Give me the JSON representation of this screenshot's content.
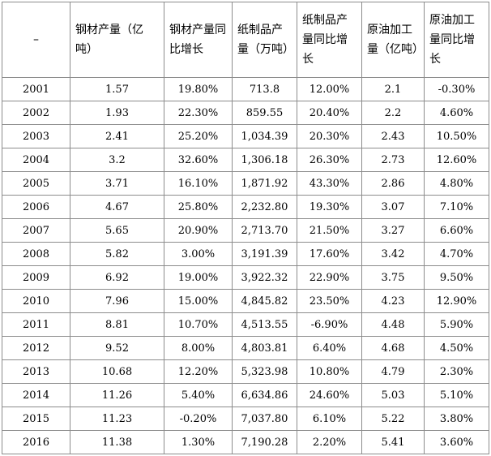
{
  "table": {
    "headers": [
      "–",
      "钢材产量（亿吨）",
      "钢材产量同比增长",
      "纸制品产量（万吨）",
      "纸制品产量同比增长",
      "原油加工量（亿吨）",
      "原油加工量同比增长"
    ],
    "rows": [
      [
        "2001",
        "1.57",
        "19.80%",
        "713.8",
        "12.00%",
        "2.1",
        "-0.30%"
      ],
      [
        "2002",
        "1.93",
        "22.30%",
        "859.55",
        "20.40%",
        "2.2",
        "4.60%"
      ],
      [
        "2003",
        "2.41",
        "25.20%",
        "1,034.39",
        "20.30%",
        "2.43",
        "10.50%"
      ],
      [
        "2004",
        "3.2",
        "32.60%",
        "1,306.18",
        "26.30%",
        "2.73",
        "12.60%"
      ],
      [
        "2005",
        "3.71",
        "16.10%",
        "1,871.92",
        "43.30%",
        "2.86",
        "4.80%"
      ],
      [
        "2006",
        "4.67",
        "25.80%",
        "2,232.80",
        "19.30%",
        "3.07",
        "7.10%"
      ],
      [
        "2007",
        "5.65",
        "20.90%",
        "2,713.70",
        "21.50%",
        "3.27",
        "6.60%"
      ],
      [
        "2008",
        "5.82",
        "3.00%",
        "3,191.39",
        "17.60%",
        "3.42",
        "4.70%"
      ],
      [
        "2009",
        "6.92",
        "19.00%",
        "3,922.32",
        "22.90%",
        "3.75",
        "9.50%"
      ],
      [
        "2010",
        "7.96",
        "15.00%",
        "4,845.82",
        "23.50%",
        "4.23",
        "12.90%"
      ],
      [
        "2011",
        "8.81",
        "10.70%",
        "4,513.55",
        "-6.90%",
        "4.48",
        "5.90%"
      ],
      [
        "2012",
        "9.52",
        "8.00%",
        "4,803.81",
        "6.40%",
        "4.68",
        "4.50%"
      ],
      [
        "2013",
        "10.68",
        "12.20%",
        "5,323.98",
        "10.80%",
        "4.79",
        "2.30%"
      ],
      [
        "2014",
        "11.26",
        "5.40%",
        "6,634.86",
        "24.60%",
        "5.03",
        "5.10%"
      ],
      [
        "2015",
        "11.23",
        "-0.20%",
        "7,037.80",
        "6.10%",
        "5.22",
        "3.80%"
      ],
      [
        "2016",
        "11.38",
        "1.30%",
        "7,190.28",
        "2.20%",
        "5.41",
        "3.60%"
      ]
    ]
  }
}
